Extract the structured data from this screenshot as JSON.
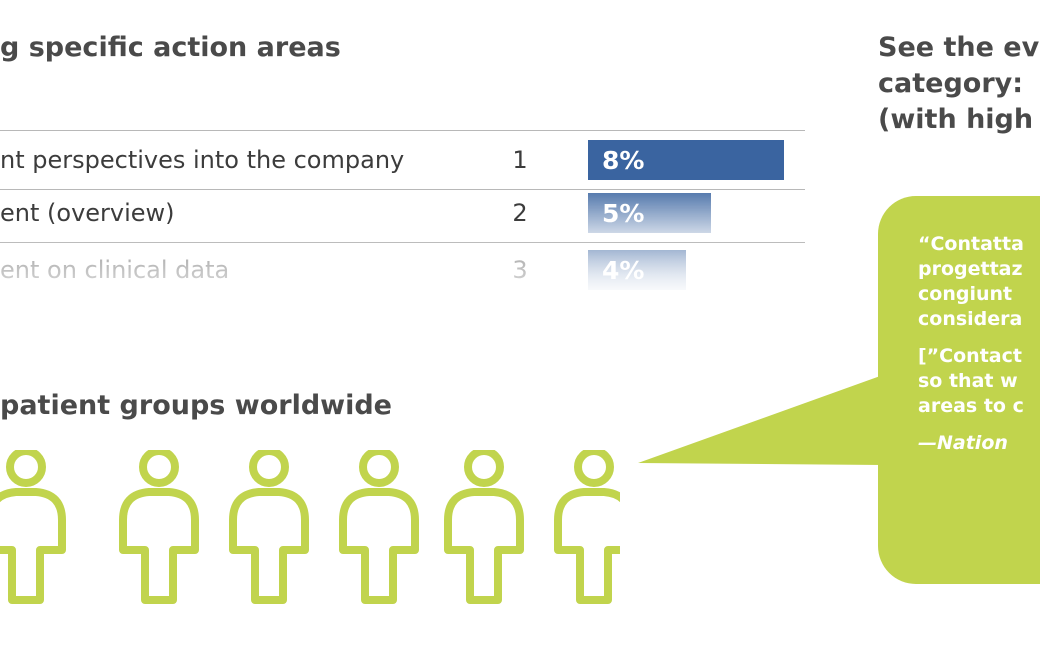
{
  "left_panel": {
    "heading_areas": "g specific action areas",
    "heading_groups": "patient groups worldwide"
  },
  "right_panel": {
    "heading_line1": "See the ev",
    "heading_line2": "category:",
    "heading_line3": "(with high",
    "quote_it": [
      "“Contatta",
      "progettaz",
      "congiunt",
      "considera"
    ],
    "quote_en": [
      "[”Contact",
      "so that w",
      "areas to c"
    ],
    "attribution": "—Nation"
  },
  "colors": {
    "bar_primary": "#3a64a0",
    "accent_green": "#c1d44d",
    "heading": "#4a4a4a"
  },
  "icons": [
    "person-icon",
    "person-icon",
    "person-icon",
    "person-icon",
    "person-icon",
    "person-icon",
    "person-icon"
  ],
  "chart_data": {
    "type": "bar",
    "orientation": "horizontal",
    "categories": [
      "nt perspectives into the company",
      "ent (overview)",
      "ent on clinical data"
    ],
    "ranks": [
      "1",
      "2",
      "3"
    ],
    "values": [
      8,
      5,
      4
    ],
    "value_labels": [
      "8%",
      "5%",
      "4%"
    ],
    "unit": "%"
  }
}
